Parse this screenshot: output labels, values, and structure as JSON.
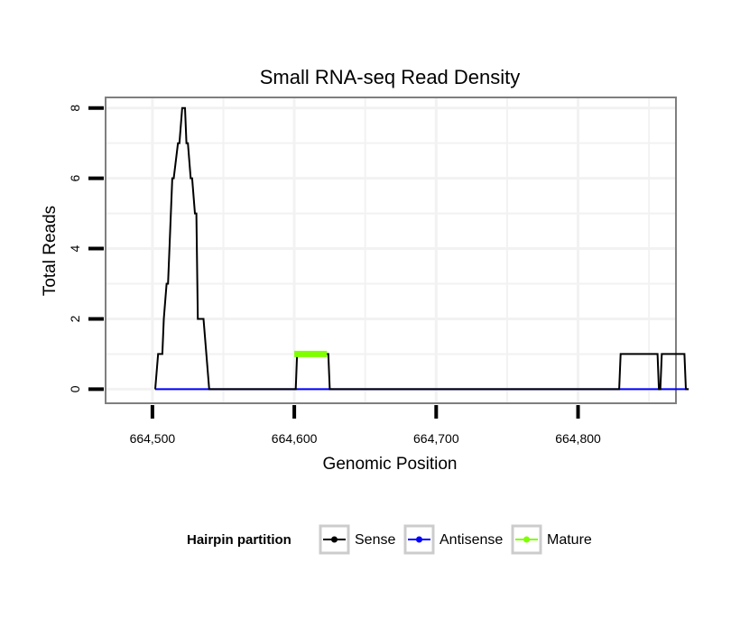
{
  "chart_data": {
    "type": "line",
    "title": "Small RNA-seq Read Density",
    "xlabel": "Genomic Position",
    "ylabel": "Total Reads",
    "xlim": [
      664467,
      664869
    ],
    "ylim": [
      -0.4,
      8.3
    ],
    "x_ticks": [
      {
        "value": 664500,
        "label": "664,500"
      },
      {
        "value": 664600,
        "label": "664,600"
      },
      {
        "value": 664700,
        "label": "664,700"
      },
      {
        "value": 664800,
        "label": "664,800"
      }
    ],
    "y_ticks": [
      {
        "value": 0,
        "label": "0"
      },
      {
        "value": 2,
        "label": "2"
      },
      {
        "value": 4,
        "label": "4"
      },
      {
        "value": 6,
        "label": "6"
      },
      {
        "value": 8,
        "label": "8"
      }
    ],
    "grid": true,
    "legend": {
      "title": "Hairpin partition",
      "position": "bottom",
      "entries": [
        {
          "name": "Sense",
          "color": "#000000"
        },
        {
          "name": "Antisense",
          "color": "#0000ff"
        },
        {
          "name": "Mature",
          "color": "#7fff00"
        }
      ]
    },
    "series": [
      {
        "name": "Sense",
        "color": "#000000",
        "x": [
          664502,
          664504,
          664507,
          664508,
          664510,
          664511,
          664514,
          664515,
          664518,
          664519,
          664521,
          664523,
          664524,
          664525,
          664527,
          664528,
          664530,
          664531,
          664532,
          664533,
          664535,
          664536,
          664540,
          664541,
          664543,
          664601,
          664602,
          664624,
          664625,
          664634,
          664638,
          664640,
          664685,
          664686,
          664700,
          664715,
          664788,
          664790,
          664829,
          664830,
          664832,
          664833,
          664856,
          664857,
          664858,
          664859,
          664865,
          664875,
          664876,
          664878
        ],
        "y": [
          0,
          1,
          1,
          2,
          3,
          3,
          6,
          6,
          7,
          7,
          8,
          8,
          7,
          7,
          6,
          6,
          5,
          5,
          2,
          2,
          2,
          2,
          0,
          0,
          0,
          0,
          1,
          1,
          0,
          0,
          0,
          0,
          0,
          0,
          0,
          0,
          0,
          0,
          0,
          1,
          1,
          1,
          1,
          0,
          0,
          1,
          1,
          1,
          0,
          0
        ]
      },
      {
        "name": "Antisense",
        "color": "#0000ff",
        "x": [
          664502,
          664878
        ],
        "y": [
          0,
          0
        ]
      },
      {
        "name": "Mature",
        "color": "#7fff00",
        "x": [
          664600,
          664623
        ],
        "y": [
          1,
          1
        ]
      }
    ]
  }
}
